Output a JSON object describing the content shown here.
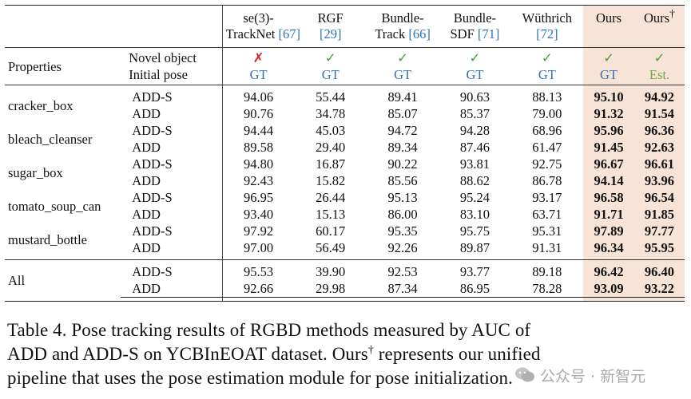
{
  "header": {
    "methods": [
      {
        "name": "se(3)-",
        "name2": "TrackNet",
        "cite": "[67]"
      },
      {
        "name": "RGF",
        "name2": "",
        "cite": "[29]"
      },
      {
        "name": "Bundle-",
        "name2": "Track",
        "cite": "[66]"
      },
      {
        "name": "Bundle-",
        "name2": "SDF",
        "cite": "[71]"
      },
      {
        "name": "Wüthrich",
        "name2": "",
        "cite": "[72]"
      },
      {
        "name": "Ours",
        "name2": "",
        "cite": ""
      },
      {
        "name": "Ours",
        "name2": "",
        "cite": "",
        "sup": "†"
      }
    ],
    "properties_label": "Properties",
    "novel_object_label": "Novel object",
    "initial_pose_label": "Initial pose",
    "novel": [
      "✗",
      "✓",
      "✓",
      "✓",
      "✓",
      "✓",
      "✓"
    ],
    "initpose": [
      "GT",
      "GT",
      "GT",
      "GT",
      "GT",
      "GT",
      "Est."
    ]
  },
  "rows": [
    {
      "object": "cracker_box",
      "metrics": [
        {
          "metric": "ADD-S",
          "values": [
            "94.06",
            "55.44",
            "89.41",
            "90.63",
            "88.13",
            "95.10",
            "94.92"
          ]
        },
        {
          "metric": "ADD",
          "values": [
            "90.76",
            "34.78",
            "85.07",
            "85.37",
            "79.00",
            "91.32",
            "91.54"
          ]
        }
      ]
    },
    {
      "object": "bleach_cleanser",
      "metrics": [
        {
          "metric": "ADD-S",
          "values": [
            "94.44",
            "45.03",
            "94.72",
            "94.28",
            "68.96",
            "95.96",
            "96.36"
          ]
        },
        {
          "metric": "ADD",
          "values": [
            "89.58",
            "29.40",
            "89.34",
            "87.46",
            "61.47",
            "91.45",
            "92.63"
          ]
        }
      ]
    },
    {
      "object": "sugar_box",
      "metrics": [
        {
          "metric": "ADD-S",
          "values": [
            "94.80",
            "16.87",
            "90.22",
            "93.81",
            "92.75",
            "96.67",
            "96.61"
          ]
        },
        {
          "metric": "ADD",
          "values": [
            "92.43",
            "15.82",
            "85.56",
            "88.62",
            "86.78",
            "94.14",
            "93.96"
          ]
        }
      ]
    },
    {
      "object": "tomato_soup_can",
      "metrics": [
        {
          "metric": "ADD-S",
          "values": [
            "96.95",
            "26.44",
            "95.13",
            "95.24",
            "93.17",
            "96.58",
            "96.54"
          ]
        },
        {
          "metric": "ADD",
          "values": [
            "93.40",
            "15.13",
            "86.00",
            "83.10",
            "63.71",
            "91.71",
            "91.85"
          ]
        }
      ]
    },
    {
      "object": "mustard_bottle",
      "metrics": [
        {
          "metric": "ADD-S",
          "values": [
            "97.92",
            "60.17",
            "95.35",
            "95.75",
            "95.31",
            "97.89",
            "97.77"
          ]
        },
        {
          "metric": "ADD",
          "values": [
            "97.00",
            "56.49",
            "92.26",
            "89.87",
            "91.31",
            "96.34",
            "95.95"
          ]
        }
      ]
    }
  ],
  "all_row": {
    "object": "All",
    "metrics": [
      {
        "metric": "ADD-S",
        "values": [
          "95.53",
          "39.90",
          "92.53",
          "93.77",
          "89.18",
          "96.42",
          "96.40"
        ]
      },
      {
        "metric": "ADD",
        "values": [
          "92.66",
          "29.98",
          "87.34",
          "86.95",
          "78.28",
          "93.09",
          "93.22"
        ]
      }
    ]
  },
  "caption": {
    "line1": "Table 4.  Pose tracking results of RGBD methods measured by AUC of",
    "line2a": "ADD and ADD-S on YCBInEOAT dataset.  Ours",
    "line2sup": "†",
    "line2b": " represents our unified",
    "line3": "pipeline that uses the pose estimation module for pose initialization."
  },
  "watermark": {
    "text": "公众号 · 新智元"
  },
  "colors": {
    "highlight": "#f8e4d7",
    "gt_blue": "#2f73b7",
    "est_green": "#6ea94d",
    "check_green": "#46a23e",
    "cross_red": "#d8231d"
  }
}
